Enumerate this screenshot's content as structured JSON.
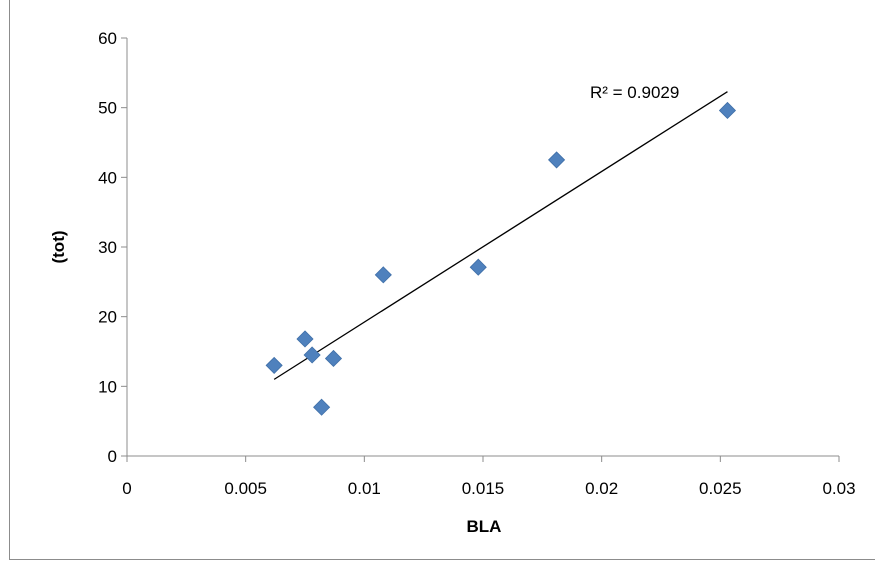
{
  "chart_data": {
    "type": "scatter",
    "title": "",
    "xlabel": "BLA",
    "ylabel": "(tot)",
    "xlim": [
      0,
      0.03
    ],
    "ylim": [
      0,
      60
    ],
    "x_ticks": [
      "0",
      "0.005",
      "0.01",
      "0.015",
      "0.02",
      "0.025",
      "0.03"
    ],
    "y_ticks": [
      "0",
      "10",
      "20",
      "30",
      "40",
      "50",
      "60"
    ],
    "grid": false,
    "marker_color": "#4f81bd",
    "trendline_color": "#000000",
    "points": [
      {
        "x": 0.0062,
        "y": 13.0
      },
      {
        "x": 0.0075,
        "y": 16.8
      },
      {
        "x": 0.0078,
        "y": 14.5
      },
      {
        "x": 0.0082,
        "y": 7.0
      },
      {
        "x": 0.0087,
        "y": 14.0
      },
      {
        "x": 0.0108,
        "y": 26.0
      },
      {
        "x": 0.0148,
        "y": 27.1
      },
      {
        "x": 0.0181,
        "y": 42.5
      },
      {
        "x": 0.0253,
        "y": 49.6
      }
    ],
    "trendline": {
      "x_start": 0.0062,
      "y_start": 11.0,
      "x_end": 0.0253,
      "y_end": 52.3
    },
    "annotation": "R² = 0.9029"
  }
}
